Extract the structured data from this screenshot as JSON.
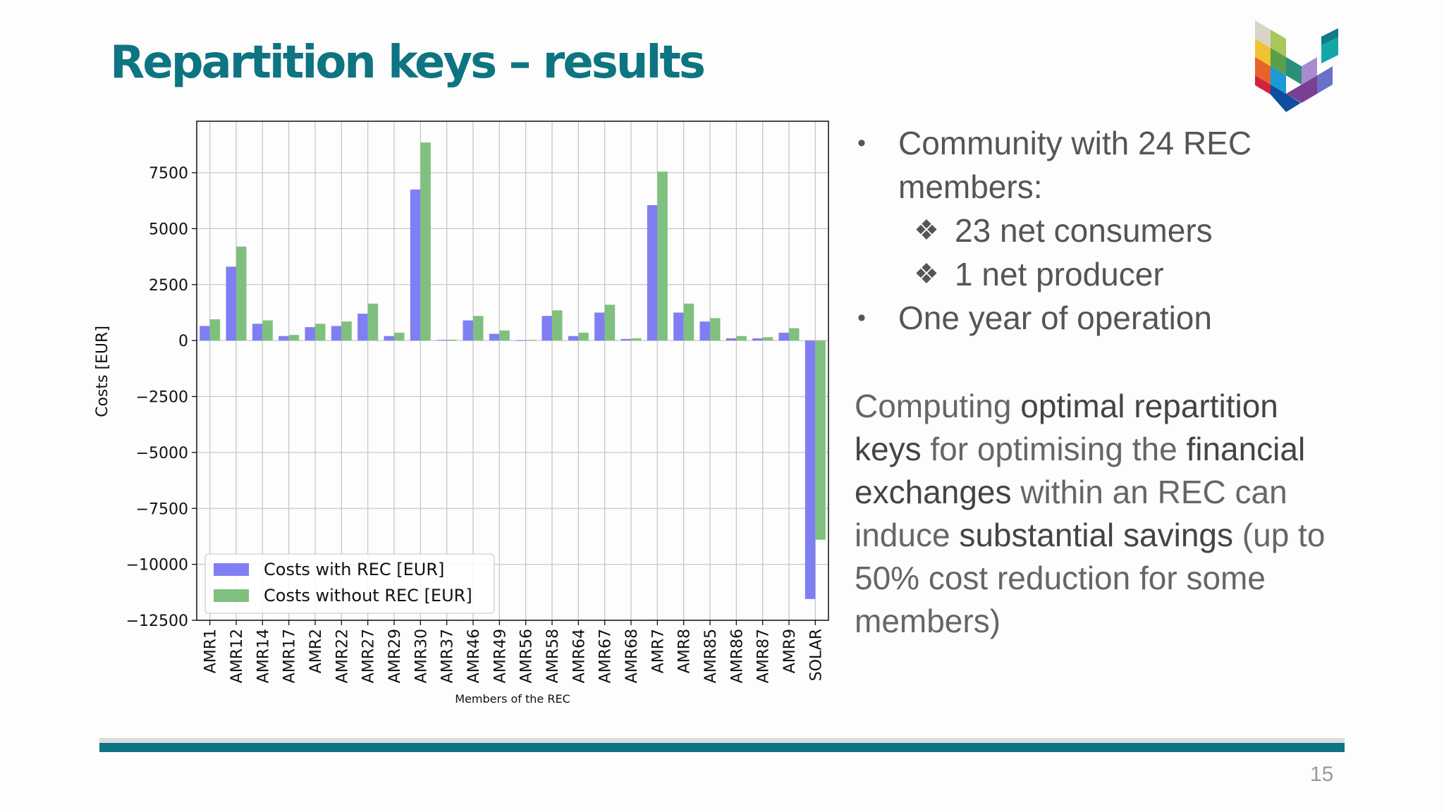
{
  "slide": {
    "title": "Repartition keys – results",
    "page_number": "15",
    "bullets": [
      {
        "text": "Community with 24 REC members:",
        "sub": [
          "23 net consumers",
          "1 net producer"
        ]
      },
      {
        "text": "One year of operation",
        "sub": []
      }
    ],
    "paragraph": [
      {
        "text": "Computing ",
        "bold": false
      },
      {
        "text": "optimal repartition keys",
        "bold": true
      },
      {
        "text": " for optimising the ",
        "bold": false
      },
      {
        "text": "financial exchanges",
        "bold": true
      },
      {
        "text": " within an REC can induce ",
        "bold": false
      },
      {
        "text": "substantial savings",
        "bold": true
      },
      {
        "text": " (up to 50% cost reduction for some members)",
        "bold": false
      }
    ]
  },
  "colors": {
    "title": "#0d7482",
    "with_rec": "#7f7ff3",
    "without_rec": "#7fc07f"
  },
  "chart_data": {
    "type": "bar",
    "xlabel": "Members of the REC",
    "ylabel": "Costs [EUR]",
    "ylim": [
      -12500,
      9800
    ],
    "yticks": [
      -12500,
      -10000,
      -7500,
      -5000,
      -2500,
      0,
      2500,
      5000,
      7500
    ],
    "ytick_labels": [
      "−12500",
      "−10000",
      "−7500",
      "−5000",
      "−2500",
      "0",
      "2500",
      "5000",
      "7500"
    ],
    "grid": true,
    "legend": "lower-left",
    "categories": [
      "AMR1",
      "AMR12",
      "AMR14",
      "AMR17",
      "AMR2",
      "AMR22",
      "AMR27",
      "AMR29",
      "AMR30",
      "AMR37",
      "AMR46",
      "AMR49",
      "AMR56",
      "AMR58",
      "AMR64",
      "AMR67",
      "AMR68",
      "AMR7",
      "AMR8",
      "AMR85",
      "AMR86",
      "AMR87",
      "AMR9",
      "SOLAR"
    ],
    "series": [
      {
        "name": "Costs with REC [EUR]",
        "values": [
          650,
          3300,
          750,
          200,
          600,
          650,
          1200,
          200,
          6750,
          30,
          900,
          300,
          20,
          1100,
          200,
          1250,
          70,
          6050,
          1250,
          850,
          100,
          100,
          350,
          -11550
        ]
      },
      {
        "name": "Costs without REC [EUR]",
        "values": [
          950,
          4200,
          900,
          250,
          750,
          850,
          1650,
          350,
          8850,
          40,
          1100,
          450,
          30,
          1350,
          350,
          1600,
          100,
          7550,
          1650,
          1000,
          200,
          150,
          550,
          -8900
        ]
      }
    ]
  }
}
